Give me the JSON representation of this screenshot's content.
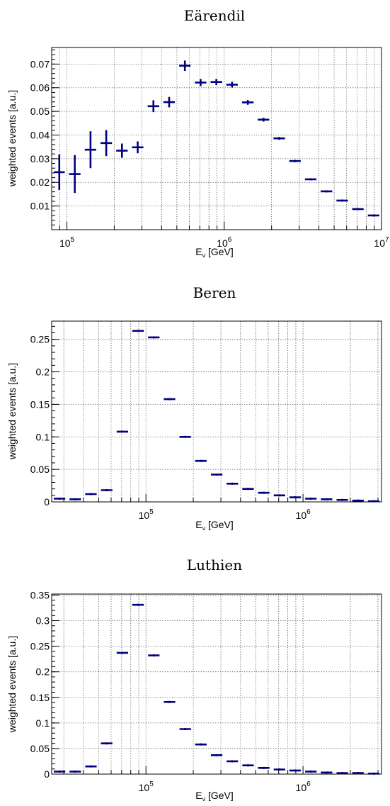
{
  "chart_data": [
    {
      "type": "scatter",
      "title": "Eärendil",
      "xlabel": "E",
      "xlabel_sub": "ν",
      "xlabel_unit": " [GeV]",
      "ylabel": "weighted events [a.u.]",
      "xscale": "log",
      "xlim": [
        80000,
        10000000
      ],
      "ylim": [
        0.0,
        0.077
      ],
      "grid": true,
      "xticks": [
        {
          "value": 100000,
          "base": "10",
          "exp": "5"
        },
        {
          "value": 1000000,
          "base": "10",
          "exp": "6"
        },
        {
          "value": 10000000,
          "base": "10",
          "exp": "7"
        }
      ],
      "yticks": [
        {
          "value": 0.01,
          "label": "0.01"
        },
        {
          "value": 0.02,
          "label": "0.02"
        },
        {
          "value": 0.03,
          "label": "0.03"
        },
        {
          "value": 0.04,
          "label": "0.04"
        },
        {
          "value": 0.05,
          "label": "0.05"
        },
        {
          "value": 0.06,
          "label": "0.06"
        },
        {
          "value": 0.07,
          "label": "0.07"
        }
      ],
      "points": [
        {
          "x0": 80000,
          "x1": 100000,
          "y": 0.0243,
          "err": 0.0075
        },
        {
          "x0": 100000,
          "x1": 125900,
          "y": 0.0235,
          "err": 0.008
        },
        {
          "x0": 125900,
          "x1": 158500,
          "y": 0.0338,
          "err": 0.0078
        },
        {
          "x0": 158500,
          "x1": 199500,
          "y": 0.0366,
          "err": 0.0055
        },
        {
          "x0": 199500,
          "x1": 251200,
          "y": 0.0334,
          "err": 0.003
        },
        {
          "x0": 251200,
          "x1": 316200,
          "y": 0.0348,
          "err": 0.0025
        },
        {
          "x0": 316200,
          "x1": 398100,
          "y": 0.0522,
          "err": 0.0025
        },
        {
          "x0": 398100,
          "x1": 501200,
          "y": 0.0539,
          "err": 0.0022
        },
        {
          "x0": 501200,
          "x1": 631000,
          "y": 0.0693,
          "err": 0.0022
        },
        {
          "x0": 631000,
          "x1": 794300,
          "y": 0.0622,
          "err": 0.0015
        },
        {
          "x0": 794300,
          "x1": 1000000,
          "y": 0.0624,
          "err": 0.0013
        },
        {
          "x0": 1000000,
          "x1": 1259000,
          "y": 0.0613,
          "err": 0.0012
        },
        {
          "x0": 1259000,
          "x1": 1585000,
          "y": 0.0538,
          "err": 0.001
        },
        {
          "x0": 1585000,
          "x1": 1995000,
          "y": 0.0465,
          "err": 0.0008
        },
        {
          "x0": 1995000,
          "x1": 2512000,
          "y": 0.0386,
          "err": 0.0006
        },
        {
          "x0": 2512000,
          "x1": 3162000,
          "y": 0.029,
          "err": 0.0005
        },
        {
          "x0": 3162000,
          "x1": 3981000,
          "y": 0.0213,
          "err": 0.0003
        },
        {
          "x0": 3981000,
          "x1": 5012000,
          "y": 0.0162,
          "err": 0.0002
        },
        {
          "x0": 5012000,
          "x1": 6310000,
          "y": 0.0123,
          "err": 0.0002
        },
        {
          "x0": 6310000,
          "x1": 7943000,
          "y": 0.0087,
          "err": 0.0001
        },
        {
          "x0": 7943000,
          "x1": 10000000,
          "y": 0.006,
          "err": 0.0001
        }
      ]
    },
    {
      "type": "scatter",
      "title": "Beren",
      "xlabel": "E",
      "xlabel_sub": "ν",
      "xlabel_unit": " [GeV]",
      "ylabel": "weighted events [a.u.]",
      "xscale": "log",
      "xlim": [
        25100,
        3160000
      ],
      "ylim": [
        0.0,
        0.278
      ],
      "grid": true,
      "xticks": [
        {
          "value": 100000,
          "base": "10",
          "exp": "5"
        },
        {
          "value": 1000000,
          "base": "10",
          "exp": "6"
        }
      ],
      "yticks": [
        {
          "value": 0.0,
          "label": "0"
        },
        {
          "value": 0.05,
          "label": "0.05"
        },
        {
          "value": 0.1,
          "label": "0.1"
        },
        {
          "value": 0.15,
          "label": "0.15"
        },
        {
          "value": 0.2,
          "label": "0.2"
        },
        {
          "value": 0.25,
          "label": "0.25"
        }
      ],
      "points": [
        {
          "x0": 25100,
          "x1": 31600,
          "y": 0.005,
          "err": 0.0
        },
        {
          "x0": 31600,
          "x1": 39800,
          "y": 0.004,
          "err": 0.0
        },
        {
          "x0": 39800,
          "x1": 50100,
          "y": 0.012,
          "err": 0.0
        },
        {
          "x0": 50100,
          "x1": 63100,
          "y": 0.018,
          "err": 0.0
        },
        {
          "x0": 63100,
          "x1": 79400,
          "y": 0.108,
          "err": 0.0
        },
        {
          "x0": 79400,
          "x1": 100000,
          "y": 0.263,
          "err": 0.0015
        },
        {
          "x0": 100000,
          "x1": 125900,
          "y": 0.253,
          "err": 0.0015
        },
        {
          "x0": 125900,
          "x1": 158500,
          "y": 0.158,
          "err": 0.0
        },
        {
          "x0": 158500,
          "x1": 199500,
          "y": 0.1,
          "err": 0.0
        },
        {
          "x0": 199500,
          "x1": 251200,
          "y": 0.063,
          "err": 0.0
        },
        {
          "x0": 251200,
          "x1": 316200,
          "y": 0.042,
          "err": 0.0
        },
        {
          "x0": 316200,
          "x1": 398100,
          "y": 0.028,
          "err": 0.0
        },
        {
          "x0": 398100,
          "x1": 501200,
          "y": 0.02,
          "err": 0.0
        },
        {
          "x0": 501200,
          "x1": 631000,
          "y": 0.014,
          "err": 0.0
        },
        {
          "x0": 631000,
          "x1": 794300,
          "y": 0.01,
          "err": 0.0
        },
        {
          "x0": 794300,
          "x1": 1000000,
          "y": 0.007,
          "err": 0.0
        },
        {
          "x0": 1000000,
          "x1": 1259000,
          "y": 0.005,
          "err": 0.0
        },
        {
          "x0": 1259000,
          "x1": 1585000,
          "y": 0.004,
          "err": 0.0
        },
        {
          "x0": 1585000,
          "x1": 1995000,
          "y": 0.003,
          "err": 0.0
        },
        {
          "x0": 1995000,
          "x1": 2512000,
          "y": 0.002,
          "err": 0.0
        },
        {
          "x0": 2512000,
          "x1": 3162000,
          "y": 0.001,
          "err": 0.0
        }
      ]
    },
    {
      "type": "scatter",
      "title": "Luthien",
      "xlabel": "E",
      "xlabel_sub": "ν",
      "xlabel_unit": " [GeV]",
      "ylabel": "weighted events [a.u.]",
      "xscale": "log",
      "xlim": [
        25100,
        3160000
      ],
      "ylim": [
        0.0,
        0.352
      ],
      "grid": true,
      "xticks": [
        {
          "value": 100000,
          "base": "10",
          "exp": "5"
        },
        {
          "value": 1000000,
          "base": "10",
          "exp": "6"
        }
      ],
      "yticks": [
        {
          "value": 0.0,
          "label": "0"
        },
        {
          "value": 0.05,
          "label": "0.05"
        },
        {
          "value": 0.1,
          "label": "0.1"
        },
        {
          "value": 0.15,
          "label": "0.15"
        },
        {
          "value": 0.2,
          "label": "0.2"
        },
        {
          "value": 0.25,
          "label": "0.25"
        },
        {
          "value": 0.3,
          "label": "0.3"
        },
        {
          "value": 0.35,
          "label": "0.35"
        }
      ],
      "points": [
        {
          "x0": 25100,
          "x1": 31600,
          "y": 0.005,
          "err": 0.0
        },
        {
          "x0": 31600,
          "x1": 39800,
          "y": 0.005,
          "err": 0.0
        },
        {
          "x0": 39800,
          "x1": 50100,
          "y": 0.015,
          "err": 0.0
        },
        {
          "x0": 50100,
          "x1": 63100,
          "y": 0.06,
          "err": 0.0
        },
        {
          "x0": 63100,
          "x1": 79400,
          "y": 0.237,
          "err": 0.0
        },
        {
          "x0": 79400,
          "x1": 100000,
          "y": 0.331,
          "err": 0.0015
        },
        {
          "x0": 100000,
          "x1": 125900,
          "y": 0.232,
          "err": 0.0012
        },
        {
          "x0": 125900,
          "x1": 158500,
          "y": 0.141,
          "err": 0.0
        },
        {
          "x0": 158500,
          "x1": 199500,
          "y": 0.088,
          "err": 0.0
        },
        {
          "x0": 199500,
          "x1": 251200,
          "y": 0.058,
          "err": 0.0
        },
        {
          "x0": 251200,
          "x1": 316200,
          "y": 0.037,
          "err": 0.0
        },
        {
          "x0": 316200,
          "x1": 398100,
          "y": 0.025,
          "err": 0.0
        },
        {
          "x0": 398100,
          "x1": 501200,
          "y": 0.017,
          "err": 0.0
        },
        {
          "x0": 501200,
          "x1": 631000,
          "y": 0.012,
          "err": 0.0
        },
        {
          "x0": 631000,
          "x1": 794300,
          "y": 0.009,
          "err": 0.0
        },
        {
          "x0": 794300,
          "x1": 1000000,
          "y": 0.007,
          "err": 0.0
        },
        {
          "x0": 1000000,
          "x1": 1259000,
          "y": 0.005,
          "err": 0.0
        },
        {
          "x0": 1259000,
          "x1": 1585000,
          "y": 0.003,
          "err": 0.0
        },
        {
          "x0": 1585000,
          "x1": 1995000,
          "y": 0.002,
          "err": 0.0
        },
        {
          "x0": 1995000,
          "x1": 2512000,
          "y": 0.002,
          "err": 0.0
        },
        {
          "x0": 2512000,
          "x1": 3162000,
          "y": 0.001,
          "err": 0.0
        }
      ]
    }
  ],
  "colors": {
    "marker": "#00007f",
    "grid": "#4a4a4a",
    "frame": "#000000",
    "background": "#ffffff"
  }
}
